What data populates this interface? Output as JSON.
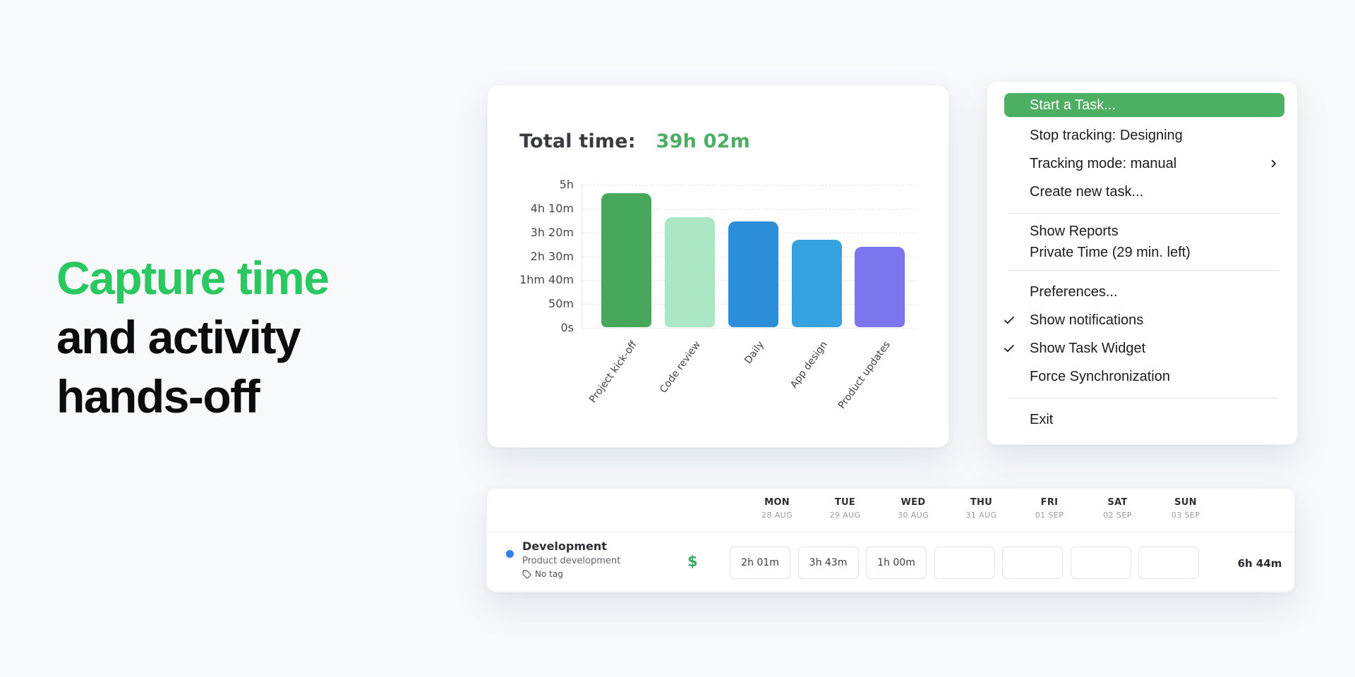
{
  "hero": {
    "line1": "Capture time",
    "line2": "and activity",
    "line3": "hands-off"
  },
  "chart_card": {
    "title_label": "Total time:",
    "title_value": "39h 02m"
  },
  "chart_data": {
    "type": "bar",
    "title": "Total time: 39h 02m",
    "categories": [
      "Project kick-off",
      "Code review",
      "Daily",
      "App design",
      "Product updates"
    ],
    "values_minutes": [
      281,
      230,
      221,
      183,
      169
    ],
    "unit": "minutes",
    "yticks_bottom_up": [
      "0s",
      "50m",
      "1hm 40m",
      "2h 30m",
      "3h 20m",
      "4h 10m",
      "5h"
    ],
    "ylim_minutes": [
      0,
      300
    ],
    "bar_colors": [
      "#47a85c",
      "#abe7c5",
      "#2c8ed8",
      "#36a3e0",
      "#7b75ee"
    ],
    "grid": "horizontal-dashed",
    "legend": "none"
  },
  "menu": {
    "highlight_color": "#4caf61",
    "items": [
      {
        "type": "highlight",
        "label": "Start a Task..."
      },
      {
        "type": "item",
        "label": "Stop tracking: Designing"
      },
      {
        "type": "item",
        "label": "Tracking mode: manual",
        "submenu_arrow": true
      },
      {
        "type": "item",
        "label": "Create new task..."
      },
      {
        "type": "separator"
      },
      {
        "type": "item",
        "label": "Show Reports",
        "compact": true
      },
      {
        "type": "item",
        "label": "Private Time (29 min. left)",
        "compact": true
      },
      {
        "type": "separator"
      },
      {
        "type": "item",
        "label": "Preferences..."
      },
      {
        "type": "item",
        "label": "Show notifications",
        "checked": true
      },
      {
        "type": "item",
        "label": "Show Task Widget",
        "checked": true
      },
      {
        "type": "item",
        "label": "Force Synchronization"
      },
      {
        "type": "separator"
      },
      {
        "type": "item",
        "label": "Exit"
      }
    ]
  },
  "timesheet": {
    "days": [
      {
        "name": "MON",
        "date": "28 AUG"
      },
      {
        "name": "TUE",
        "date": "29 AUG"
      },
      {
        "name": "WED",
        "date": "30 AUG"
      },
      {
        "name": "THU",
        "date": "31 AUG"
      },
      {
        "name": "FRI",
        "date": "01 SEP"
      },
      {
        "name": "SAT",
        "date": "02 SEP"
      },
      {
        "name": "SUN",
        "date": "03 SEP"
      }
    ],
    "row": {
      "project": "Development",
      "task": "Product development",
      "tag_label": "No tag",
      "billable_symbol": "$",
      "cells": [
        "2h 01m",
        "3h 43m",
        "1h 00m",
        "",
        "",
        "",
        ""
      ],
      "total": "6h 44m"
    }
  },
  "colors": {
    "hero_accent": "#2bc761",
    "total_time_green": "#4cae62",
    "menu_highlight": "#4caf61",
    "billable_green": "#3aa85f",
    "project_dot_blue": "#2f80ed",
    "page_background": "#f7f9fb"
  }
}
